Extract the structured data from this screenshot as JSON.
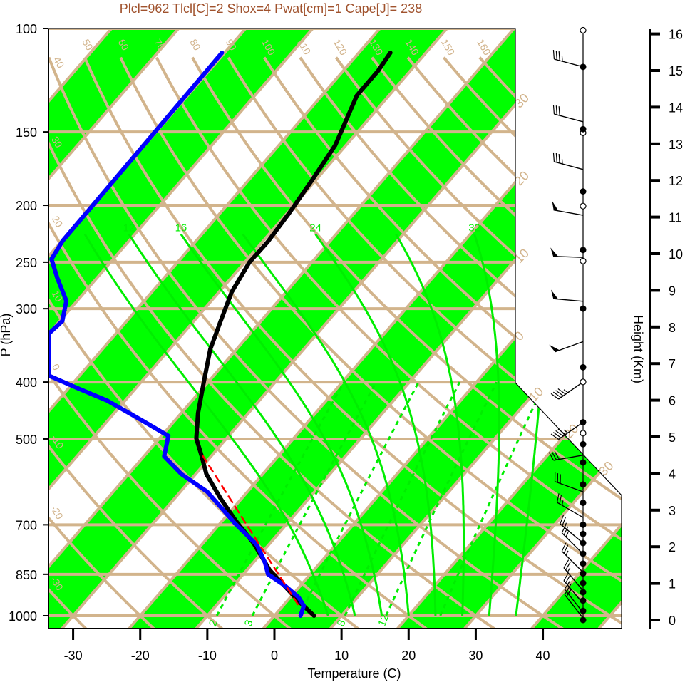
{
  "title": "Plcl=962 Tlcl[C]=2 Shox=4 Pwat[cm]=1 Cape[J]= 238",
  "chart_data": {
    "type": "line",
    "diagram": "skew-T log-P",
    "title": "Plcl=962 Tlcl[C]=2 Shox=4 Pwat[cm]=1 Cape[J]= 238",
    "xlabel": "Temperature (C)",
    "ylabel": "P (hPa)",
    "y2label": "Height (Km)",
    "xlim": [
      -33.7,
      51.7
    ],
    "ylim": [
      1050,
      100
    ],
    "xticks": [
      -30,
      -20,
      -10,
      0,
      10,
      20,
      30,
      40
    ],
    "pressure_ticks": [
      100,
      150,
      200,
      250,
      300,
      400,
      500,
      700,
      850,
      1000
    ],
    "height_ticks": [
      0,
      1,
      2,
      3,
      4,
      5,
      6,
      7,
      8,
      9,
      10,
      11,
      12,
      13,
      14,
      15,
      16
    ],
    "series": [
      {
        "name": "temperature",
        "color": "#000000",
        "style": "solid",
        "points": [
          [
            1000,
            5.9
          ],
          [
            948,
            2.0
          ],
          [
            836,
            -6.6
          ],
          [
            752,
            -12.5
          ],
          [
            688,
            -18.1
          ],
          [
            632,
            -23.1
          ],
          [
            574,
            -28.4
          ],
          [
            535,
            -31.4
          ],
          [
            499,
            -34.5
          ],
          [
            452,
            -37.5
          ],
          [
            404,
            -40.4
          ],
          [
            352,
            -43.9
          ],
          [
            315,
            -46.0
          ],
          [
            281,
            -48.1
          ],
          [
            250,
            -49.3
          ],
          [
            231,
            -49.2
          ],
          [
            207,
            -49.7
          ],
          [
            180,
            -50.6
          ],
          [
            158,
            -51.6
          ],
          [
            130,
            -54.8
          ],
          [
            118,
            -54.8
          ],
          [
            110,
            -55.3
          ]
        ]
      },
      {
        "name": "dewpoint",
        "color": "#0000ff",
        "style": "solid",
        "points": [
          [
            1000,
            3.9
          ],
          [
            962,
            3.1
          ],
          [
            930,
            1.2
          ],
          [
            889,
            -2.3
          ],
          [
            850,
            -6.3
          ],
          [
            813,
            -8.2
          ],
          [
            758,
            -11.7
          ],
          [
            697,
            -17.7
          ],
          [
            615,
            -26.0
          ],
          [
            574,
            -32.1
          ],
          [
            535,
            -37.0
          ],
          [
            494,
            -39.0
          ],
          [
            465,
            -44.9
          ],
          [
            430,
            -52.7
          ],
          [
            410,
            -58.6
          ],
          [
            390,
            -64.6
          ],
          [
            331,
            -70.0
          ],
          [
            315,
            -69.6
          ],
          [
            291,
            -71.6
          ],
          [
            266,
            -75.9
          ],
          [
            247,
            -79.2
          ],
          [
            230,
            -79.9
          ],
          [
            110,
            -80.4
          ]
        ]
      },
      {
        "name": "parcel",
        "color": "#ff0000",
        "style": "dashed",
        "points": [
          [
            956,
            2.0
          ],
          [
            717,
            -14.5
          ],
          [
            535,
            -31.2
          ]
        ]
      }
    ],
    "band_color": "#00ff00",
    "grid_color": "#d2b48c",
    "dry_adiabats_C": [
      -30,
      -20,
      -10,
      0,
      10,
      20,
      30,
      40,
      50,
      60,
      70,
      80,
      90,
      100,
      110,
      120,
      130,
      140,
      150,
      160
    ],
    "isotherm_labels": [
      {
        "t": -30,
        "text": "30"
      },
      {
        "t": -20,
        "text": "20"
      },
      {
        "t": -10,
        "text": "10"
      },
      {
        "t": 0,
        "text": "0"
      },
      {
        "t": 10,
        "text": "10"
      },
      {
        "t": 20,
        "text": "20"
      },
      {
        "t": 30,
        "text": "30"
      }
    ],
    "moist_adiabats_thetaw_C": [
      8,
      12,
      16,
      20,
      24,
      28,
      32,
      36
    ],
    "moist_adiabat_labels": [
      "12",
      "16",
      "24",
      "32"
    ],
    "mixing_ratios_gkg": [
      2,
      3,
      5,
      8,
      12,
      20
    ],
    "mixing_ratio_labels": [
      "2",
      "3",
      "8",
      "12"
    ],
    "wind_barbs": [
      {
        "h": 15.1,
        "dir": 285,
        "spd": 35
      },
      {
        "h": 13.6,
        "dir": 285,
        "spd": 30
      },
      {
        "h": 12.3,
        "dir": 285,
        "spd": 35
      },
      {
        "h": 11.05,
        "dir": 280,
        "spd": 50
      },
      {
        "h": 9.9,
        "dir": 272,
        "spd": 50
      },
      {
        "h": 8.7,
        "dir": 275,
        "spd": 50
      },
      {
        "h": 7.6,
        "dir": 250,
        "spd": 50
      },
      {
        "h": 6.5,
        "dir": 235,
        "spd": 45
      },
      {
        "h": 5.4,
        "dir": 235,
        "spd": 45
      },
      {
        "h": 4.5,
        "dir": 260,
        "spd": 30
      },
      {
        "h": 3.5,
        "dir": 290,
        "spd": 30
      },
      {
        "h": 2.8,
        "dir": 300,
        "spd": 25
      },
      {
        "h": 2.1,
        "dir": 310,
        "spd": 25
      },
      {
        "h": 1.8,
        "dir": 315,
        "spd": 25
      },
      {
        "h": 1.3,
        "dir": 315,
        "spd": 25
      },
      {
        "h": 0.8,
        "dir": 320,
        "spd": 25
      },
      {
        "h": 0.45,
        "dir": 320,
        "spd": 25
      },
      {
        "h": 0.2,
        "dir": 322,
        "spd": 25
      },
      {
        "h": 0.05,
        "dir": 322,
        "spd": 20
      }
    ],
    "level_dots_filled_km": [
      15.1,
      13.4,
      11.7,
      10.1,
      8.5,
      6.9,
      5.4,
      4.8,
      4.3,
      3.7,
      3.2,
      2.6,
      2.35,
      2.1,
      1.81,
      1.54,
      1.27,
      1.01,
      0.76,
      0.53,
      0.25,
      0
    ],
    "level_dots_open_km": [
      16.1,
      13.3,
      11.3,
      9.8,
      6.5,
      5.1
    ]
  }
}
